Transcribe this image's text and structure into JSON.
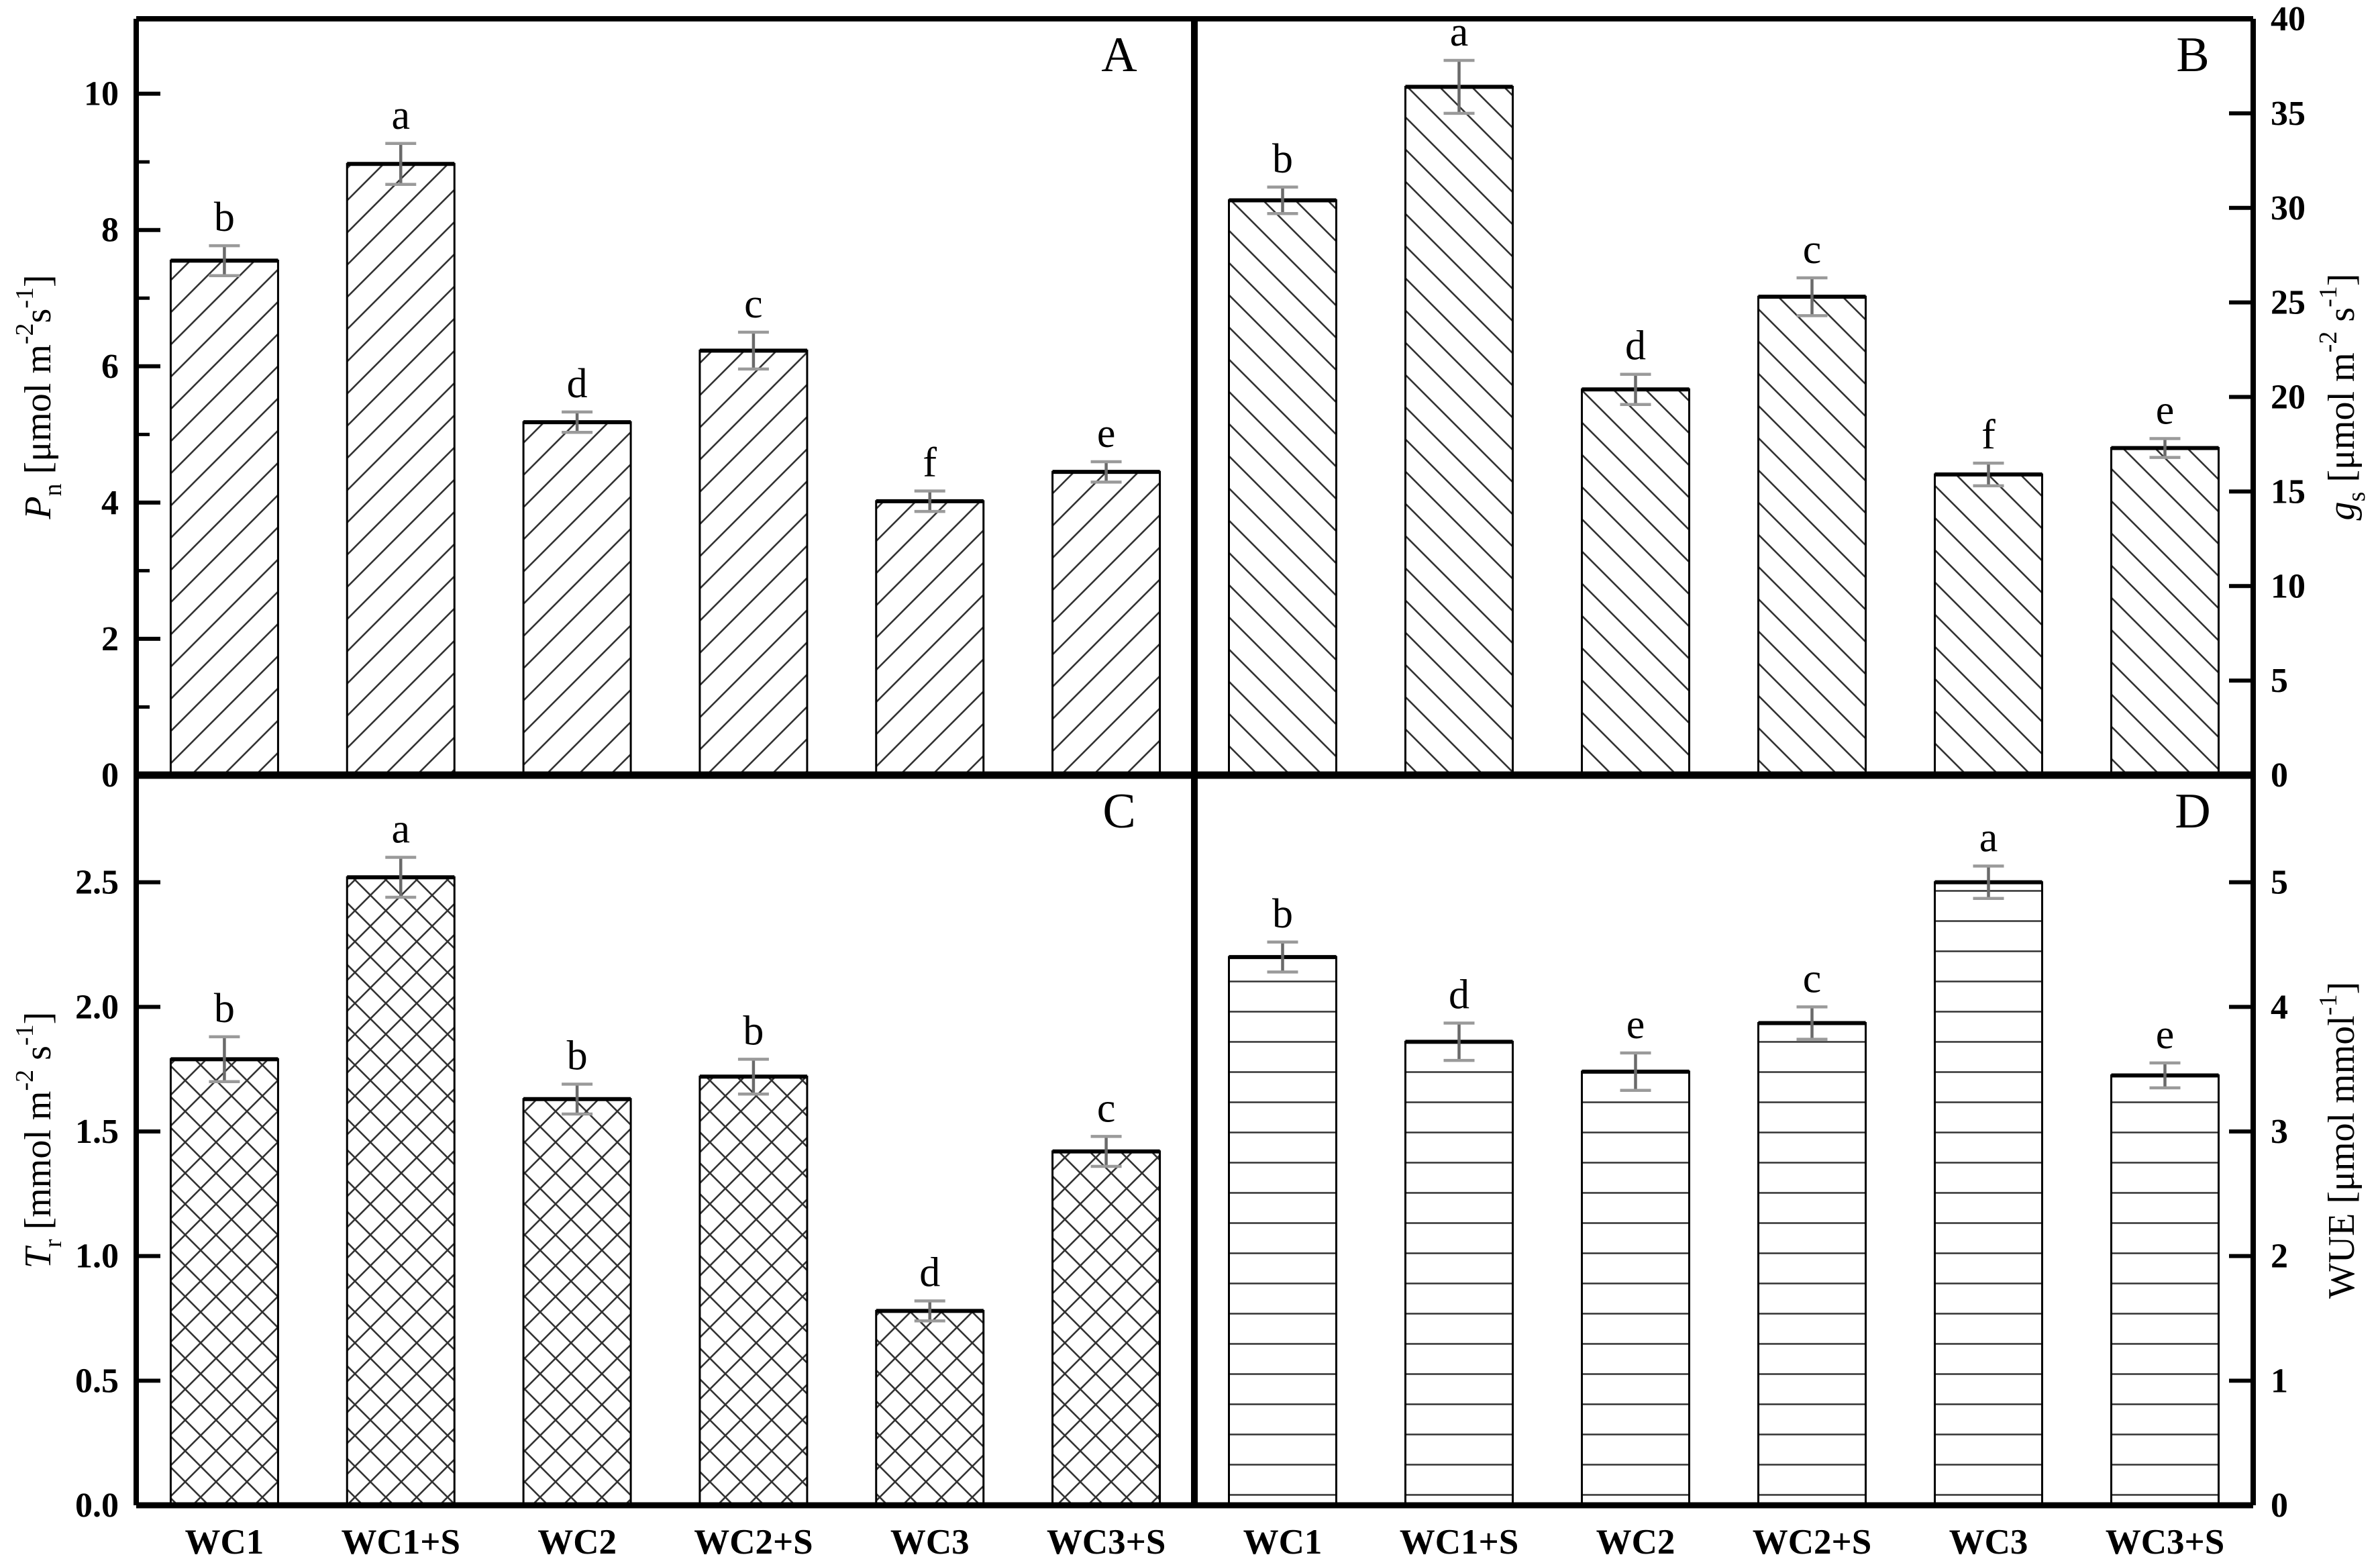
{
  "figure": {
    "background": "#ffffff",
    "ink_color": "#000000",
    "hatch_color": "#333333",
    "error_bar_color": "#6a6a6a",
    "error_cap_color": "#9a9a9a"
  },
  "categories": [
    "WC1",
    "WC1+S",
    "WC2",
    "WC2+S",
    "WC3",
    "WC3+S"
  ],
  "chart_data": [
    {
      "type": "bar",
      "panel_label": "A",
      "position": "top-left",
      "axis_side": "left",
      "ylabel": "Pn [umol m-2s-1]",
      "ylabel_parts": [
        [
          "P",
          "i"
        ],
        [
          "n",
          "sub"
        ],
        [
          " [μmol m",
          ""
        ],
        [
          "-2",
          "sup"
        ],
        [
          "s",
          ""
        ],
        [
          "-1",
          "sup"
        ],
        [
          "]",
          ""
        ]
      ],
      "ylim": [
        0,
        11.1
      ],
      "yticks": [
        {
          "v": 0,
          "label": "0"
        },
        {
          "v": 2,
          "label": "2"
        },
        {
          "v": 4,
          "label": "4"
        },
        {
          "v": 6,
          "label": "6"
        },
        {
          "v": 8,
          "label": "8"
        },
        {
          "v": 10,
          "label": "10"
        }
      ],
      "minor_ticks": [
        1,
        3,
        5,
        7,
        9
      ],
      "hatch": "diagonal-up",
      "values": [
        7.55,
        8.97,
        5.18,
        6.23,
        4.02,
        4.45
      ],
      "errors": [
        0.22,
        0.3,
        0.15,
        0.27,
        0.15,
        0.15
      ],
      "letters": [
        "b",
        "a",
        "d",
        "c",
        "f",
        "e"
      ],
      "show_x_labels": false
    },
    {
      "type": "bar",
      "panel_label": "B",
      "position": "top-right",
      "axis_side": "right",
      "ylabel": "gs [umol m-2 s-1]",
      "ylabel_parts": [
        [
          "g",
          "i"
        ],
        [
          "s",
          "sub"
        ],
        [
          " [μmol m",
          ""
        ],
        [
          "-2",
          "sup"
        ],
        [
          " s",
          ""
        ],
        [
          "-1",
          "sup"
        ],
        [
          "]",
          ""
        ]
      ],
      "ylim": [
        0,
        40
      ],
      "yticks": [
        {
          "v": 0,
          "label": "0"
        },
        {
          "v": 5,
          "label": "5"
        },
        {
          "v": 10,
          "label": "10"
        },
        {
          "v": 15,
          "label": "15"
        },
        {
          "v": 20,
          "label": "20"
        },
        {
          "v": 25,
          "label": "25"
        },
        {
          "v": 30,
          "label": "30"
        },
        {
          "v": 35,
          "label": "35"
        },
        {
          "v": 40,
          "label": "40"
        }
      ],
      "minor_ticks": [],
      "hatch": "diagonal-down",
      "values": [
        30.4,
        36.4,
        20.4,
        25.3,
        15.9,
        17.3
      ],
      "errors": [
        0.7,
        1.4,
        0.8,
        1.0,
        0.6,
        0.5
      ],
      "letters": [
        "b",
        "a",
        "d",
        "c",
        "f",
        "e"
      ],
      "show_x_labels": false
    },
    {
      "type": "bar",
      "panel_label": "C",
      "position": "bottom-left",
      "axis_side": "left",
      "ylabel": "Tr [mmol m-2 s-1]",
      "ylabel_parts": [
        [
          "T",
          "i"
        ],
        [
          "r",
          "sub"
        ],
        [
          " [mmol m",
          ""
        ],
        [
          "-2",
          "sup"
        ],
        [
          " s",
          ""
        ],
        [
          "-1",
          "sup"
        ],
        [
          "]",
          ""
        ]
      ],
      "ylim": [
        0,
        2.93
      ],
      "yticks": [
        {
          "v": 0,
          "label": "0.0"
        },
        {
          "v": 0.5,
          "label": "0.5"
        },
        {
          "v": 1,
          "label": "1.0"
        },
        {
          "v": 1.5,
          "label": "1.5"
        },
        {
          "v": 2,
          "label": "2.0"
        },
        {
          "v": 2.5,
          "label": "2.5"
        }
      ],
      "minor_ticks": [],
      "hatch": "crosshatch",
      "values": [
        1.79,
        2.52,
        1.63,
        1.72,
        0.78,
        1.42
      ],
      "errors": [
        0.09,
        0.08,
        0.06,
        0.07,
        0.04,
        0.06
      ],
      "letters": [
        "b",
        "a",
        "b",
        "b",
        "d",
        "c"
      ],
      "show_x_labels": true
    },
    {
      "type": "bar",
      "panel_label": "D",
      "position": "bottom-right",
      "axis_side": "right",
      "ylabel": "WUE [umol mmol-1]",
      "ylabel_parts": [
        [
          "WUE [μmol mmol",
          ""
        ],
        [
          "-1",
          "sup"
        ],
        [
          "]",
          ""
        ]
      ],
      "ylim": [
        0,
        5.86
      ],
      "yticks": [
        {
          "v": 0,
          "label": "0"
        },
        {
          "v": 1,
          "label": "1"
        },
        {
          "v": 2,
          "label": "2"
        },
        {
          "v": 3,
          "label": "3"
        },
        {
          "v": 4,
          "label": "4"
        },
        {
          "v": 5,
          "label": "5"
        }
      ],
      "minor_ticks": [],
      "hatch": "horizontal",
      "values": [
        4.4,
        3.72,
        3.48,
        3.87,
        5.0,
        3.45
      ],
      "errors": [
        0.12,
        0.15,
        0.15,
        0.13,
        0.13,
        0.1
      ],
      "letters": [
        "b",
        "d",
        "e",
        "c",
        "a",
        "e"
      ],
      "show_x_labels": true
    }
  ]
}
